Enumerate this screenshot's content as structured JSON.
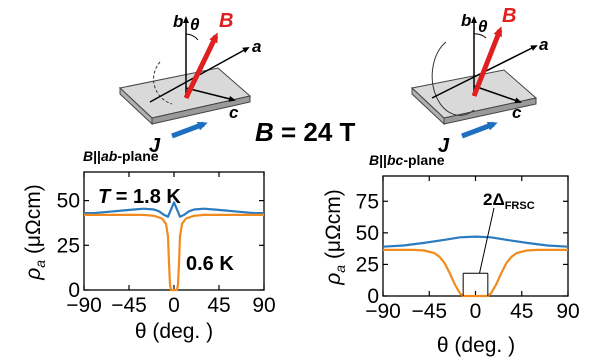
{
  "center_label": {
    "var": "B",
    "eq": " = 24 T"
  },
  "diagrams": {
    "axis_b": "b",
    "axis_a": "a",
    "axis_c": "c",
    "theta": "θ",
    "field": "B",
    "current": "J"
  },
  "colors": {
    "blue": "#2a7bbf",
    "orange": "#f28a1e",
    "field": "#e02020",
    "current": "#1f6fc0"
  },
  "chart_data": [
    {
      "type": "line",
      "title": "B||ab-plane",
      "title_parts": {
        "b": "B",
        "mid": "||",
        "ab": "ab",
        "rest": "-plane"
      },
      "xlabel": "θ (deg. )",
      "ylabel": "ρa (μΩcm)",
      "ylabel_parts": {
        "rho": "ρ",
        "sub": "a",
        "unit": " (μΩcm)"
      },
      "xlim": [
        -90,
        90
      ],
      "ylim": [
        0,
        66
      ],
      "xticks": [
        -90,
        -45,
        0,
        45,
        90
      ],
      "xtick_labels": [
        "−90",
        "−45",
        "0",
        "45",
        "90"
      ],
      "yticks": [
        0,
        25,
        50
      ],
      "ytick_labels": [
        "0",
        "25",
        "50"
      ],
      "annotations": [
        {
          "text": "T = 1.8 K",
          "parts": {
            "T": "T",
            "rest": " = 1.8 K"
          }
        },
        {
          "text": "0.6 K"
        }
      ],
      "series": [
        {
          "name": "1.8 K",
          "color": "#2a7bbf",
          "x": [
            -90,
            -80,
            -70,
            -60,
            -50,
            -40,
            -30,
            -20,
            -15,
            -10,
            -6,
            -3,
            0,
            3,
            6,
            10,
            15,
            20,
            30,
            40,
            50,
            60,
            70,
            80,
            90
          ],
          "y": [
            43,
            43,
            43.5,
            44,
            44.5,
            45,
            45.5,
            45,
            44,
            42,
            41,
            45,
            49,
            45,
            41,
            42,
            44,
            45,
            45.5,
            45,
            44.5,
            44,
            43.5,
            43,
            43
          ]
        },
        {
          "name": "0.6 K",
          "color": "#f28a1e",
          "x": [
            -90,
            -70,
            -50,
            -30,
            -20,
            -12,
            -8,
            -6,
            -5,
            -4,
            -3,
            0,
            3,
            4,
            5,
            6,
            8,
            12,
            20,
            30,
            50,
            70,
            90
          ],
          "y": [
            42,
            42,
            42,
            42,
            41.5,
            40,
            37,
            30,
            15,
            3,
            0,
            0,
            0,
            3,
            15,
            30,
            37,
            40,
            41.5,
            42,
            42,
            42,
            42
          ]
        }
      ]
    },
    {
      "type": "line",
      "title": "B||bc-plane",
      "title_parts": {
        "b": "B",
        "mid": "||",
        "ab": "bc",
        "rest": "-plane"
      },
      "xlabel": "θ (deg. )",
      "ylabel": "ρa (μΩcm)",
      "ylabel_parts": {
        "rho": "ρ",
        "sub": "a",
        "unit": " (μΩcm)"
      },
      "xlim": [
        -90,
        90
      ],
      "ylim": [
        0,
        95
      ],
      "xticks": [
        -90,
        -45,
        0,
        45,
        90
      ],
      "xtick_labels": [
        "−90",
        "−45",
        "0",
        "45",
        "90"
      ],
      "yticks": [
        0,
        25,
        50,
        75
      ],
      "ytick_labels": [
        "0",
        "25",
        "50",
        "75"
      ],
      "annotations": [
        {
          "text": "2ΔFRSC",
          "parts": {
            "main": "2Δ",
            "sub": "FRSC"
          }
        }
      ],
      "series": [
        {
          "name": "1.8 K",
          "color": "#2a7bbf",
          "x": [
            -90,
            -70,
            -50,
            -30,
            -15,
            0,
            15,
            30,
            50,
            70,
            90
          ],
          "y": [
            39,
            40,
            42,
            44.5,
            46.5,
            47,
            46.5,
            44.5,
            42,
            40,
            39
          ]
        },
        {
          "name": "0.6 K",
          "color": "#f28a1e",
          "x": [
            -90,
            -60,
            -50,
            -40,
            -35,
            -30,
            -25,
            -20,
            -15,
            -12,
            -8,
            0,
            8,
            12,
            15,
            20,
            25,
            30,
            35,
            40,
            50,
            60,
            90
          ],
          "y": [
            36.5,
            36.5,
            36,
            34,
            31,
            26,
            18,
            9,
            2,
            0,
            0,
            0,
            0,
            0,
            2,
            9,
            18,
            26,
            31,
            34,
            36,
            36.5,
            36.5
          ]
        }
      ]
    }
  ]
}
